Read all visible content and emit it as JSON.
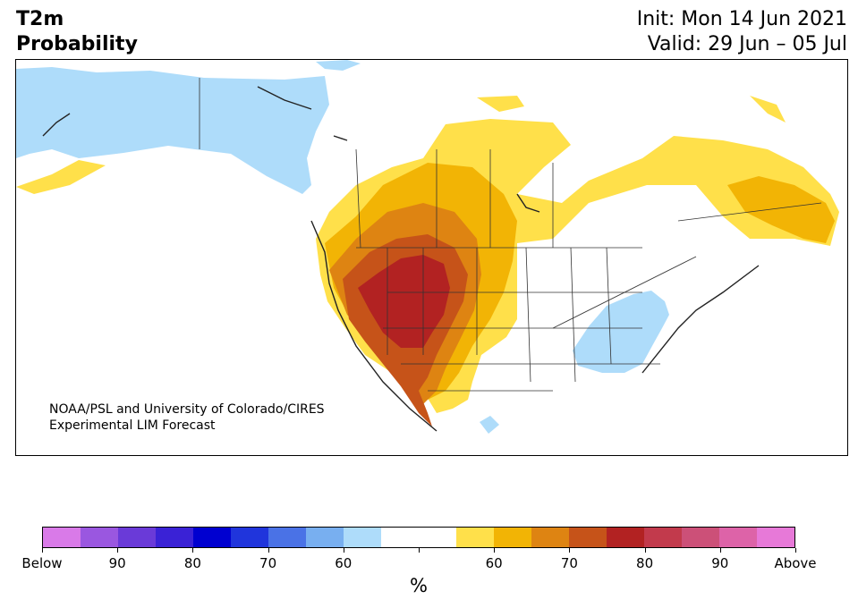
{
  "title": {
    "left_line1": "T2m",
    "left_line2": "Probability",
    "right_line1": "Init: Mon 14 Jun 2021",
    "right_line2": "Valid: 29 Jun – 05 Jul"
  },
  "credit": {
    "line1": "NOAA/PSL and University of Colorado/CIRES",
    "line2": "Experimental LIM Forecast"
  },
  "colorbar": {
    "unit": "%",
    "colors": [
      "#d97ae8",
      "#9a57e0",
      "#6a3ad8",
      "#3a22d6",
      "#0000d0",
      "#2035dc",
      "#4a72e6",
      "#78aff0",
      "#aedcfa",
      "#ffffff",
      "#ffffff",
      "#ffe04a",
      "#f2b405",
      "#de8412",
      "#c65319",
      "#b22222",
      "#c23a4c",
      "#cc5078",
      "#dd63a8",
      "#e779d8"
    ],
    "labels": [
      "Below",
      "90",
      "80",
      "70",
      "60",
      "",
      "60",
      "70",
      "80",
      "90",
      "Above"
    ]
  },
  "map": {
    "land_color": "#ffffff",
    "border_color": "#333333",
    "below_normal_color": "#aedcfa",
    "above_60_color": "#ffe04a",
    "above_70_color": "#f2b405",
    "above_80_color": "#de8412",
    "above_90_color": "#c65319",
    "above_max_color": "#b22222"
  }
}
